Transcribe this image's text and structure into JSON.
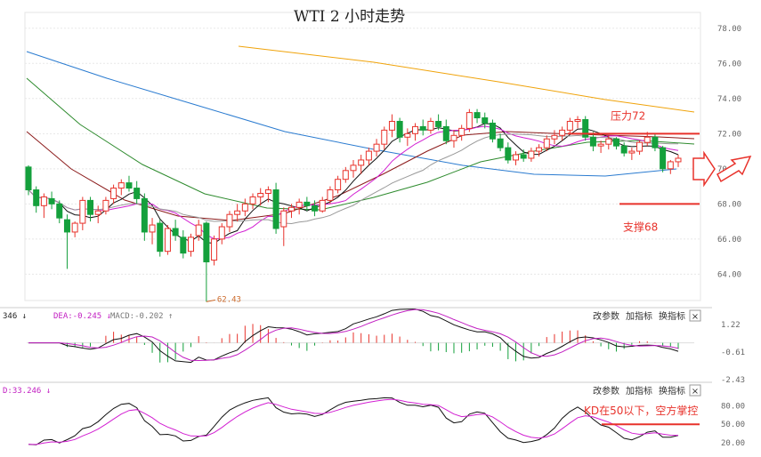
{
  "title": "WTI 2 小时走势",
  "controls": {
    "params": "改参数",
    "add": "加指标",
    "switch": "换指标",
    "close": "×"
  },
  "colors": {
    "up": "#e8322b",
    "down": "#14a03c",
    "resistance": "#e8322b",
    "support": "#e8322b"
  },
  "chart_data": [
    {
      "type": "candlestick",
      "title": "WTI 2 小时走势",
      "ylim": [
        62.5,
        78.9
      ],
      "yticks": [
        "78.00",
        "76.00",
        "74.00",
        "72.00",
        "70.00",
        "68.00",
        "66.00",
        "64.00"
      ],
      "grid": true,
      "candles": [
        [
          70.1,
          70.2,
          68.5,
          68.8
        ],
        [
          68.8,
          69.0,
          67.5,
          67.9
        ],
        [
          67.9,
          68.6,
          67.2,
          68.4
        ],
        [
          68.3,
          68.7,
          67.7,
          68.0
        ],
        [
          68.0,
          68.2,
          66.9,
          67.2
        ],
        [
          67.1,
          67.4,
          64.3,
          66.4
        ],
        [
          66.4,
          67.0,
          66.1,
          66.9
        ],
        [
          66.9,
          68.4,
          66.5,
          68.2
        ],
        [
          68.2,
          68.4,
          67.0,
          67.4
        ],
        [
          67.4,
          67.9,
          66.9,
          67.6
        ],
        [
          67.6,
          68.4,
          67.4,
          68.2
        ],
        [
          68.3,
          69.1,
          68.0,
          68.9
        ],
        [
          68.9,
          69.4,
          68.5,
          69.2
        ],
        [
          69.2,
          69.6,
          68.7,
          68.9
        ],
        [
          68.9,
          69.3,
          68.0,
          68.3
        ],
        [
          68.3,
          68.6,
          65.9,
          66.4
        ],
        [
          66.4,
          67.2,
          65.7,
          66.8
        ],
        [
          66.9,
          67.1,
          65.0,
          65.3
        ],
        [
          65.3,
          66.8,
          65.1,
          66.6
        ],
        [
          66.6,
          67.1,
          65.9,
          66.2
        ],
        [
          66.1,
          66.5,
          64.9,
          65.2
        ],
        [
          65.3,
          66.3,
          65.0,
          66.1
        ],
        [
          66.2,
          67.1,
          65.9,
          66.8
        ],
        [
          66.9,
          67.0,
          62.43,
          64.7
        ],
        [
          64.8,
          66.2,
          64.5,
          66.0
        ],
        [
          66.0,
          66.9,
          65.7,
          66.7
        ],
        [
          66.7,
          67.6,
          66.4,
          67.4
        ],
        [
          67.4,
          68.0,
          67.0,
          67.6
        ],
        [
          67.6,
          68.3,
          67.3,
          68.0
        ],
        [
          68.0,
          68.6,
          67.7,
          68.4
        ],
        [
          68.4,
          68.9,
          67.9,
          68.6
        ],
        [
          68.6,
          69.0,
          68.1,
          68.8
        ],
        [
          68.8,
          69.2,
          66.3,
          66.6
        ],
        [
          66.7,
          67.8,
          65.6,
          67.6
        ],
        [
          67.6,
          68.0,
          67.2,
          67.8
        ],
        [
          67.8,
          68.3,
          67.4,
          68.1
        ],
        [
          68.1,
          68.4,
          67.6,
          67.9
        ],
        [
          67.9,
          68.2,
          67.3,
          67.6
        ],
        [
          67.6,
          68.4,
          67.5,
          68.2
        ],
        [
          68.2,
          69.0,
          68.0,
          68.8
        ],
        [
          68.8,
          69.6,
          68.6,
          69.4
        ],
        [
          69.4,
          70.1,
          69.2,
          69.9
        ],
        [
          69.9,
          70.5,
          69.5,
          70.2
        ],
        [
          70.2,
          70.8,
          69.7,
          70.5
        ],
        [
          70.5,
          71.2,
          70.2,
          71.0
        ],
        [
          71.0,
          71.7,
          70.7,
          71.4
        ],
        [
          71.4,
          72.4,
          71.1,
          72.2
        ],
        [
          72.2,
          73.1,
          71.8,
          72.7
        ],
        [
          72.7,
          72.9,
          71.5,
          71.8
        ],
        [
          71.8,
          72.3,
          71.3,
          72.0
        ],
        [
          72.0,
          72.6,
          71.6,
          72.4
        ],
        [
          72.4,
          72.8,
          71.9,
          72.2
        ],
        [
          72.2,
          72.9,
          72.0,
          72.7
        ],
        [
          72.7,
          73.1,
          72.2,
          72.4
        ],
        [
          72.4,
          72.8,
          71.4,
          71.6
        ],
        [
          71.6,
          72.2,
          71.2,
          71.9
        ],
        [
          71.9,
          72.5,
          71.6,
          72.3
        ],
        [
          72.3,
          73.4,
          72.1,
          73.2
        ],
        [
          73.2,
          73.4,
          72.6,
          72.9
        ],
        [
          72.9,
          73.2,
          72.3,
          72.6
        ],
        [
          72.6,
          72.8,
          71.5,
          71.7
        ],
        [
          71.7,
          72.0,
          71.0,
          71.2
        ],
        [
          71.2,
          71.5,
          70.3,
          70.5
        ],
        [
          70.5,
          71.0,
          70.2,
          70.8
        ],
        [
          70.8,
          71.1,
          70.4,
          70.6
        ],
        [
          70.6,
          71.2,
          70.4,
          71.0
        ],
        [
          71.0,
          71.4,
          70.7,
          71.2
        ],
        [
          71.2,
          71.9,
          71.0,
          71.7
        ],
        [
          71.7,
          72.2,
          71.4,
          71.9
        ],
        [
          71.9,
          72.4,
          71.6,
          72.2
        ],
        [
          72.2,
          72.9,
          72.0,
          72.7
        ],
        [
          72.7,
          73.0,
          72.3,
          72.8
        ],
        [
          72.8,
          73.0,
          71.6,
          71.8
        ],
        [
          71.8,
          72.1,
          71.0,
          71.3
        ],
        [
          71.3,
          71.6,
          70.9,
          71.4
        ],
        [
          71.4,
          71.9,
          71.1,
          71.7
        ],
        [
          71.7,
          71.8,
          71.1,
          71.3
        ],
        [
          71.3,
          71.5,
          70.7,
          70.9
        ],
        [
          70.9,
          71.2,
          70.5,
          71.0
        ],
        [
          71.0,
          71.6,
          70.8,
          71.5
        ],
        [
          71.5,
          72.1,
          71.3,
          71.8
        ],
        [
          71.8,
          72.0,
          71.0,
          71.2
        ],
        [
          71.2,
          71.3,
          69.8,
          70.0
        ],
        [
          70.0,
          70.5,
          69.7,
          70.4
        ],
        [
          70.4,
          70.8,
          70.1,
          70.6
        ]
      ],
      "low_label": "62.43",
      "annotations": {
        "resistance": {
          "value": 72.0,
          "label": "压力72"
        },
        "support": {
          "value": 68.0,
          "label": "支撑68"
        }
      }
    },
    {
      "type": "macd",
      "header": {
        "dif": "346 ↓",
        "dea": "DEA:-0.245 ↓",
        "macd": "MACD:-0.202 ↑"
      },
      "ylim": [
        -2.6,
        1.5
      ],
      "yticks": [
        "1.22",
        "-0.61",
        "-2.43"
      ]
    },
    {
      "type": "kd",
      "header": "D:33.246 ↓",
      "ylim": [
        10,
        95
      ],
      "yticks": [
        "80.00",
        "50.00",
        "20.00"
      ],
      "note": "KD在50以下，空方掌控"
    }
  ]
}
